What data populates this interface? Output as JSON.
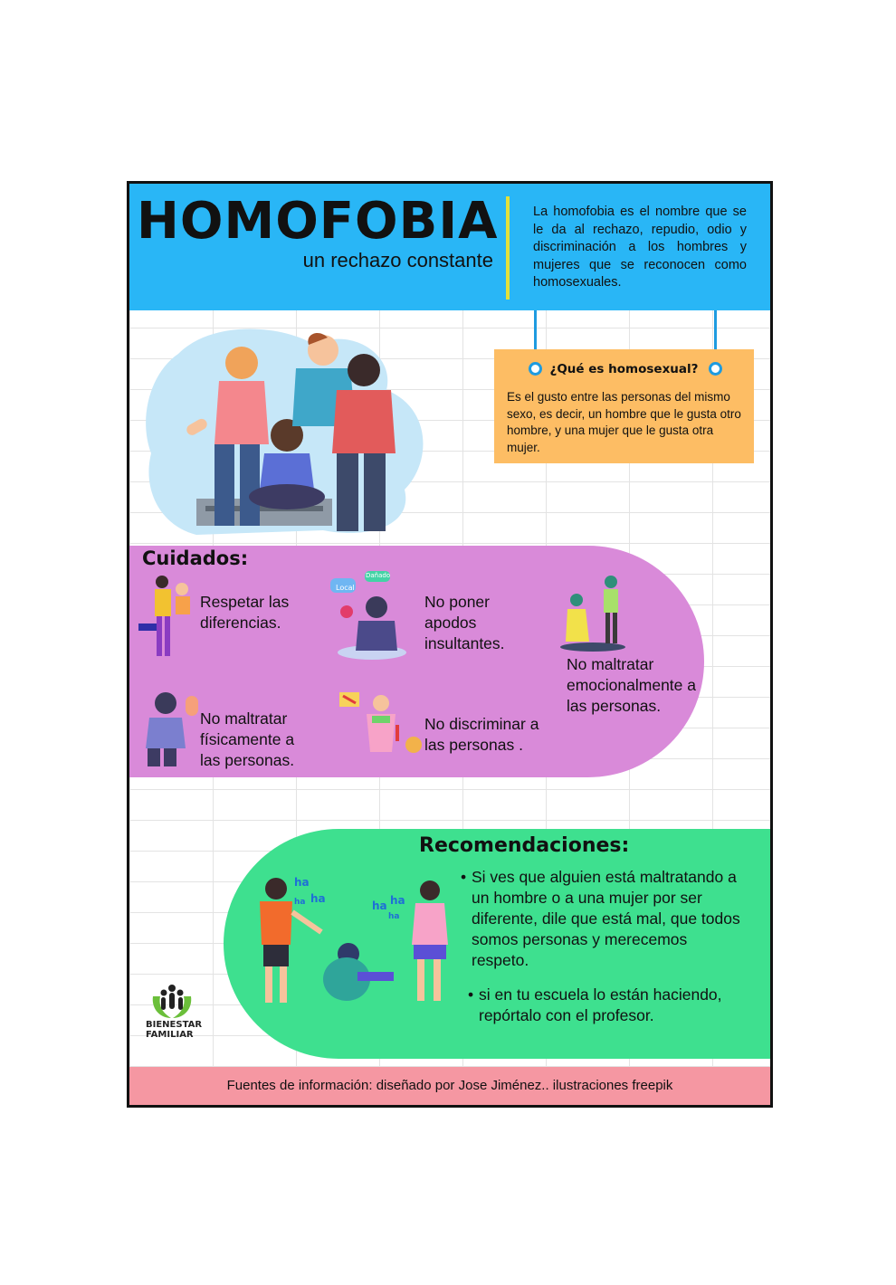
{
  "header": {
    "title": "HOMOFOBIA",
    "subtitle": "un rechazo constante",
    "intro": "La homofobia es el nombre que se le da al rechazo, repudio, odio y discriminación a los hombres y mujeres que se reconocen como homosexuales."
  },
  "question": {
    "title": "¿Qué es homosexual?",
    "text": "Es el gusto entre las personas del mismo sexo, es decir, un hombre que le gusta otro hombre, y una mujer que le gusta otra mujer."
  },
  "cuidados": {
    "title": "Cuidados:",
    "items": [
      {
        "text": "Respetar las diferencias."
      },
      {
        "text": "No poner apodos insultantes.",
        "bubble1": "Local",
        "bubble2": "Dañado"
      },
      {
        "text": "No maltratar emocionalmente a las personas."
      },
      {
        "text": "No maltratar físicamente a las personas."
      },
      {
        "text": "No discriminar a las personas ."
      }
    ]
  },
  "recomendaciones": {
    "title": "Recomendaciones:",
    "bullets": [
      "Si ves que alguien está maltratando a un hombre o a una mujer por ser diferente, dile que está mal, que todos somos personas y merecemos respeto.",
      "si en tu escuela lo están haciendo, repórtalo con el profesor."
    ],
    "laugh": "ha"
  },
  "logo": {
    "line1": "BIENESTAR",
    "line2": "FAMILIAR"
  },
  "footer": {
    "text": "Fuentes de información:  diseñado por Jose Jiménez.. ilustraciones freepik"
  },
  "colors": {
    "header_bg": "#29b6f6",
    "question_bg": "#fdbd64",
    "cuidados_bg": "#d98ad9",
    "recomendaciones_bg": "#3ee08f",
    "footer_bg": "#f597a2",
    "divider": "#e3e13a"
  }
}
